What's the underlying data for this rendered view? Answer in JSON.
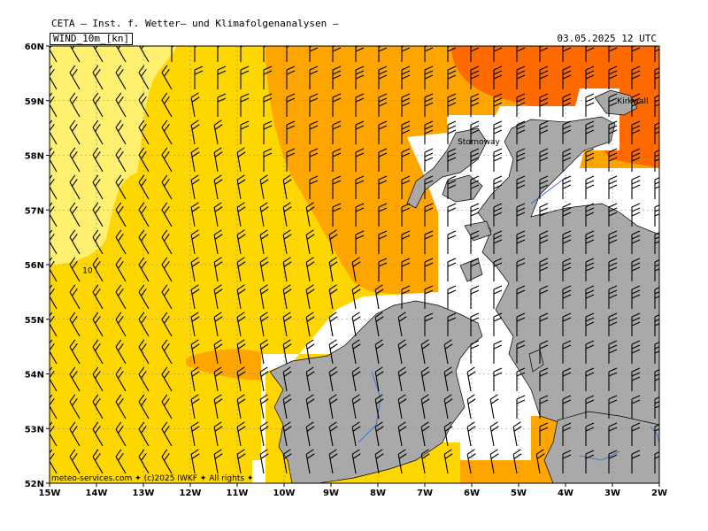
{
  "header": {
    "title": "CETA — Inst. f. Wetter— und Klimafolgenanalysen —",
    "variable": "WIND_10m_[kn]",
    "datetime": "03.05.2025  12 UTC"
  },
  "axes": {
    "lon_labels": [
      "15W",
      "14W",
      "13W",
      "12W",
      "11W",
      "10W",
      "9W",
      "8W",
      "7W",
      "6W",
      "5W",
      "4W",
      "3W",
      "2W"
    ],
    "lat_labels": [
      "60N",
      "59N",
      "58N",
      "57N",
      "56N",
      "55N",
      "54N",
      "53N",
      "52N"
    ],
    "lon_range": [
      -15,
      -2
    ],
    "lat_range": [
      52,
      60
    ]
  },
  "places": [
    {
      "name": "Stornoway",
      "lon": -6.3,
      "lat": 58.2
    },
    {
      "name": "Kirkwall",
      "lon": -2.9,
      "lat": 58.95
    }
  ],
  "contour_label": {
    "text": "10",
    "lon": -14.3,
    "lat": 55.85
  },
  "credit": "meteo-services.com ✦ (c)2025 IWKF ✦ All rights ✦",
  "colors": {
    "very_light": "#fff070",
    "light": "#ffd700",
    "medium": "#ffa500",
    "strong": "#ff6a00",
    "land": "#a9a9a9",
    "grid": "#888888"
  }
}
